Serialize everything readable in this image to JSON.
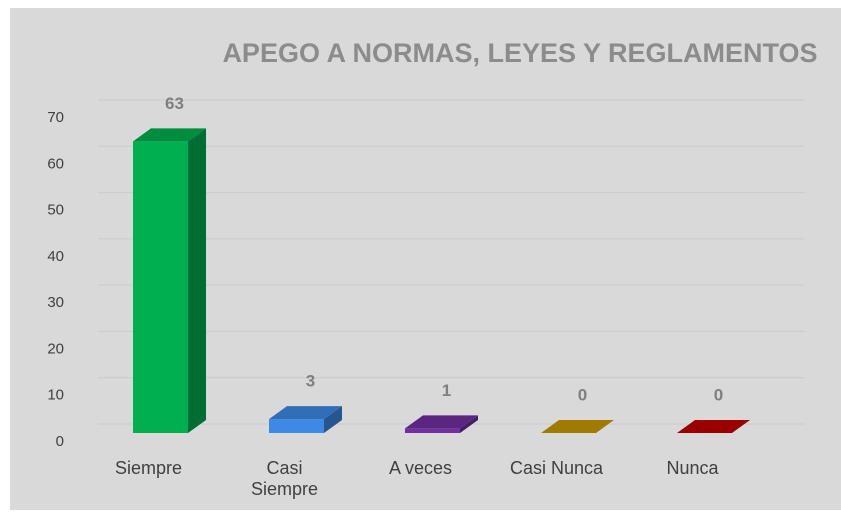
{
  "chart_data": {
    "type": "bar3d",
    "title": "APEGO A NORMAS, LEYES Y REGLAMENTOS",
    "categories": [
      "Siempre",
      "Casi Siempre",
      "A veces",
      "Casi Nunca",
      "Nunca"
    ],
    "values": [
      63,
      3,
      1,
      0,
      0
    ],
    "colors": [
      "#00b050",
      "#3c8ae6",
      "#7030a0",
      "#c99a00",
      "#c00000"
    ],
    "ylim": [
      0,
      70
    ],
    "yticks": [
      0,
      10,
      20,
      30,
      40,
      50,
      60,
      70
    ],
    "grid": true
  }
}
